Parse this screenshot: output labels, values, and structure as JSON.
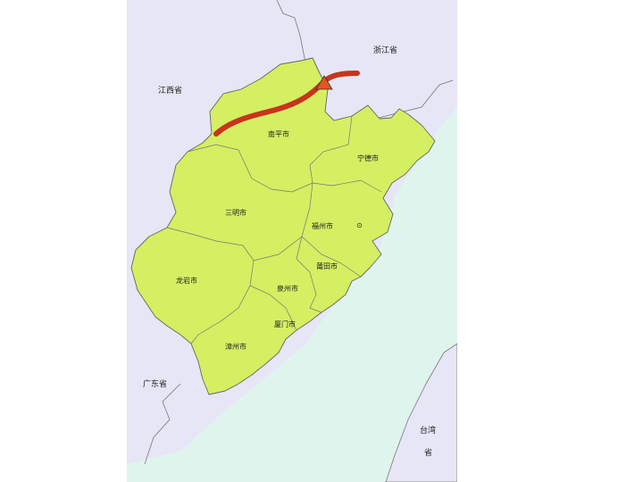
{
  "map": {
    "neighbor_provinces": {
      "jiangxi": "江西省",
      "zhejiang": "浙江省",
      "guangdong": "广东省",
      "taiwan_line1": "台湾",
      "taiwan_line2": "省"
    },
    "cities": {
      "nanping": "南平市",
      "ningde": "宁德市",
      "sanming": "三明市",
      "fuzhou": "福州市",
      "longyan": "龙岩市",
      "putian": "莆田市",
      "quanzhou": "泉州市",
      "xiamen": "厦门市",
      "zhangzhou": "漳州市"
    },
    "capital_symbol": "⊙",
    "colors": {
      "land": "#d4ef62",
      "neighbor": "#e6e6f6",
      "sea": "#e0f4ee",
      "border": "#666666",
      "route": "#c8341c",
      "marker": "#e0561f"
    }
  }
}
